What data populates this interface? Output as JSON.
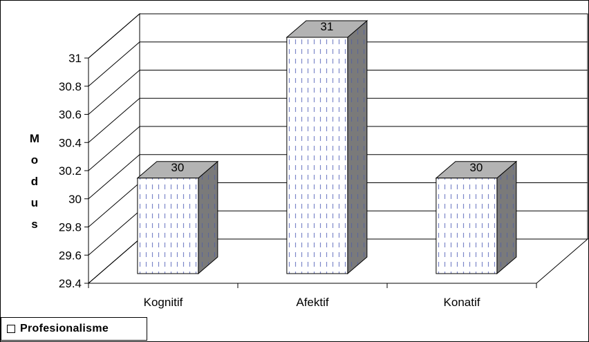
{
  "chart_data": {
    "type": "bar",
    "categories": [
      "Kognitif",
      "Afektif",
      "Konatif"
    ],
    "series": [
      {
        "name": "Profesionalisme",
        "values": [
          30,
          31,
          30
        ]
      }
    ],
    "data_labels": [
      "30",
      "31",
      "30"
    ],
    "ylabel": "Modus",
    "ylim": [
      29.4,
      31
    ],
    "yticks": [
      "29.4",
      "29.6",
      "29.8",
      "30",
      "30.2",
      "30.4",
      "30.6",
      "30.8",
      "31"
    ],
    "grid": true,
    "legend": "bottom-left",
    "style": "3d-column",
    "colors": {
      "bar_front": "#ffffff",
      "bar_pattern": "#7b86c8",
      "bar_top": "#b3b3b3",
      "bar_side": "#7a7a7a"
    }
  }
}
